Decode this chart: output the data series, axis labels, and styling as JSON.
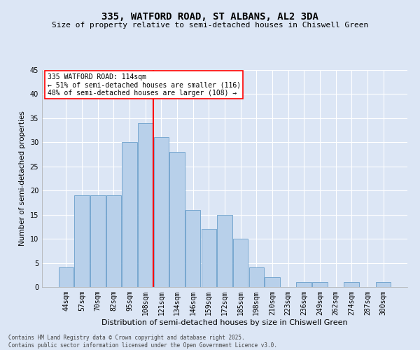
{
  "title": "335, WATFORD ROAD, ST ALBANS, AL2 3DA",
  "subtitle": "Size of property relative to semi-detached houses in Chiswell Green",
  "xlabel": "Distribution of semi-detached houses by size in Chiswell Green",
  "ylabel": "Number of semi-detached properties",
  "categories": [
    "44sqm",
    "57sqm",
    "70sqm",
    "82sqm",
    "95sqm",
    "108sqm",
    "121sqm",
    "134sqm",
    "146sqm",
    "159sqm",
    "172sqm",
    "185sqm",
    "198sqm",
    "210sqm",
    "223sqm",
    "236sqm",
    "249sqm",
    "262sqm",
    "274sqm",
    "287sqm",
    "300sqm"
  ],
  "values": [
    4,
    19,
    19,
    19,
    30,
    34,
    31,
    28,
    16,
    12,
    15,
    10,
    4,
    2,
    0,
    1,
    1,
    0,
    1,
    0,
    1
  ],
  "bar_color": "#b8d0ea",
  "bar_edge_color": "#6a9fcb",
  "vline_x_index": 5.5,
  "vline_color": "red",
  "annotation_title": "335 WATFORD ROAD: 114sqm",
  "annotation_line1": "← 51% of semi-detached houses are smaller (116)",
  "annotation_line2": "48% of semi-detached houses are larger (108) →",
  "annotation_box_color": "white",
  "annotation_box_edge": "red",
  "ylim": [
    0,
    45
  ],
  "yticks": [
    0,
    5,
    10,
    15,
    20,
    25,
    30,
    35,
    40,
    45
  ],
  "bg_color": "#dce6f5",
  "grid_color": "white",
  "footer": "Contains HM Land Registry data © Crown copyright and database right 2025.\nContains public sector information licensed under the Open Government Licence v3.0.",
  "title_fontsize": 10,
  "subtitle_fontsize": 8,
  "xlabel_fontsize": 8,
  "ylabel_fontsize": 7.5,
  "tick_fontsize": 7,
  "annotation_fontsize": 7,
  "footer_fontsize": 5.5
}
